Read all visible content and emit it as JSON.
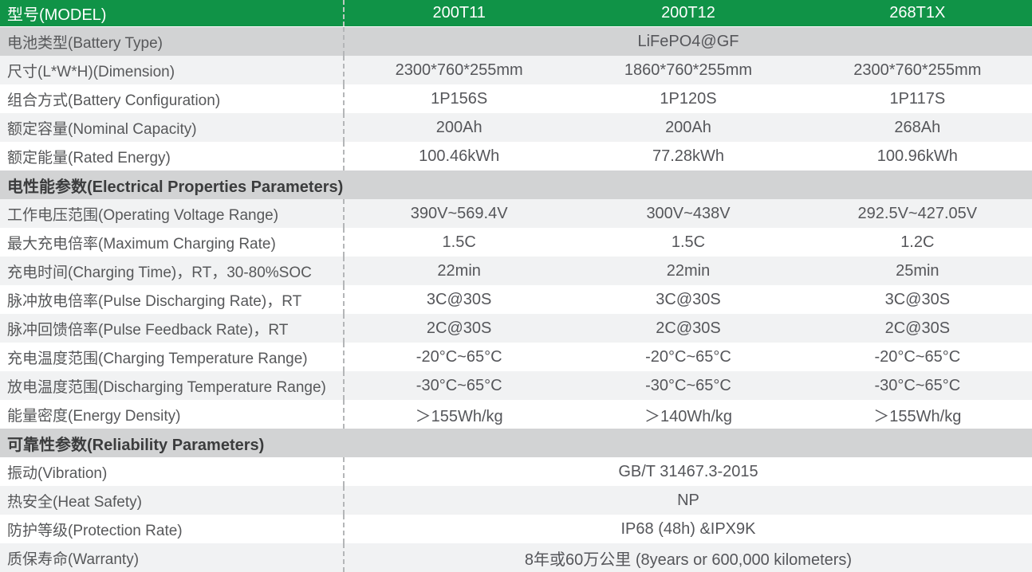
{
  "table": {
    "header": {
      "label": "型号(MODEL)",
      "columns": [
        "200T11",
        "200T12",
        "268T1X"
      ]
    },
    "rows": [
      {
        "type": "merged",
        "key": "battery-type",
        "bg": "gray",
        "label": "电池类型(Battery Type)",
        "value": "LiFePO4@GF"
      },
      {
        "type": "data",
        "key": "dimension",
        "bg": "light",
        "label": "尺寸(L*W*H)(Dimension)",
        "values": [
          "2300*760*255mm",
          "1860*760*255mm",
          "2300*760*255mm"
        ]
      },
      {
        "type": "data",
        "key": "battery-configuration",
        "bg": "white",
        "label": "组合方式(Battery Configuration)",
        "values": [
          "1P156S",
          "1P120S",
          "1P117S"
        ]
      },
      {
        "type": "data",
        "key": "nominal-capacity",
        "bg": "light",
        "label": "额定容量(Nominal Capacity)",
        "values": [
          "200Ah",
          "200Ah",
          "268Ah"
        ]
      },
      {
        "type": "data",
        "key": "rated-energy",
        "bg": "white",
        "label": "额定能量(Rated Energy)",
        "values": [
          "100.46kWh",
          "77.28kWh",
          "100.96kWh"
        ]
      },
      {
        "type": "section",
        "key": "electrical-properties-section",
        "bg": "gray",
        "label": "电性能参数(Electrical Properties Parameters)"
      },
      {
        "type": "data",
        "key": "operating-voltage-range",
        "bg": "light",
        "label": "工作电压范围(Operating Voltage Range)",
        "values": [
          "390V~569.4V",
          "300V~438V",
          "292.5V~427.05V"
        ]
      },
      {
        "type": "data",
        "key": "maximum-charging-rate",
        "bg": "white",
        "label": "最大充电倍率(Maximum Charging Rate)",
        "values": [
          "1.5C",
          "1.5C",
          "1.2C"
        ]
      },
      {
        "type": "data",
        "key": "charging-time",
        "bg": "light",
        "label": "充电时间(Charging Time)，RT，30-80%SOC",
        "values": [
          "22min",
          "22min",
          "25min"
        ]
      },
      {
        "type": "data",
        "key": "pulse-discharging-rate",
        "bg": "white",
        "label": "脉冲放电倍率(Pulse Discharging Rate)，RT",
        "values": [
          "3C@30S",
          "3C@30S",
          "3C@30S"
        ]
      },
      {
        "type": "data",
        "key": "pulse-feedback-rate",
        "bg": "light",
        "label": "脉冲回馈倍率(Pulse Feedback Rate)，RT",
        "values": [
          "2C@30S",
          "2C@30S",
          "2C@30S"
        ]
      },
      {
        "type": "data",
        "key": "charging-temperature-range",
        "bg": "white",
        "label": "充电温度范围(Charging Temperature Range)",
        "values": [
          "-20°C~65°C",
          "-20°C~65°C",
          "-20°C~65°C"
        ]
      },
      {
        "type": "data",
        "key": "discharging-temperature-range",
        "bg": "light",
        "label": "放电温度范围(Discharging Temperature Range)",
        "values": [
          "-30°C~65°C",
          "-30°C~65°C",
          "-30°C~65°C"
        ]
      },
      {
        "type": "data",
        "key": "energy-density",
        "bg": "white",
        "label": "能量密度(Energy Density)",
        "values": [
          "＞155Wh/kg",
          "＞140Wh/kg",
          "＞155Wh/kg"
        ]
      },
      {
        "type": "section",
        "key": "reliability-section",
        "bg": "gray",
        "label": "可靠性参数(Reliability Parameters)"
      },
      {
        "type": "merged",
        "key": "vibration",
        "bg": "white",
        "label": "振动(Vibration)",
        "value": "GB/T 31467.3-2015"
      },
      {
        "type": "merged",
        "key": "heat-safety",
        "bg": "light",
        "label": "热安全(Heat Safety)",
        "value": "NP"
      },
      {
        "type": "merged",
        "key": "protection-rate",
        "bg": "white",
        "label": "防护等级(Protection Rate)",
        "value": "IP68 (48h) &IPX9K"
      },
      {
        "type": "merged",
        "key": "warranty",
        "bg": "light",
        "label": "质保寿命(Warranty)",
        "value": "8年或60万公里 (8years  or 600,000 kilometers)"
      }
    ]
  },
  "colors": {
    "header_green": "#109347",
    "header_text": "#ffffff",
    "section_bg": "#d2d3d4",
    "row_alt_bg": "#f1f2f3",
    "row_bg": "#ffffff",
    "label_text": "#57585a",
    "value_text": "#55565a",
    "section_text": "#3b3c3d",
    "divider_dash": "#b4b6b8"
  }
}
